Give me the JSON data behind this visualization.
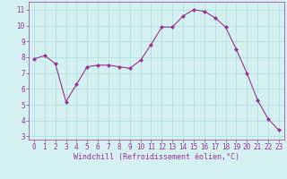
{
  "x": [
    0,
    1,
    2,
    3,
    4,
    5,
    6,
    7,
    8,
    9,
    10,
    11,
    12,
    13,
    14,
    15,
    16,
    17,
    18,
    19,
    20,
    21,
    22,
    23
  ],
  "y": [
    7.9,
    8.1,
    7.6,
    5.2,
    6.3,
    7.4,
    7.5,
    7.5,
    7.4,
    7.3,
    7.8,
    8.8,
    9.9,
    9.9,
    10.6,
    11.0,
    10.9,
    10.5,
    9.9,
    8.5,
    7.0,
    5.3,
    4.1,
    3.4
  ],
  "line_color": "#993399",
  "marker": "D",
  "marker_size": 2.0,
  "bg_color": "#d4f0f0",
  "grid_color": "#aadddd",
  "xlabel": "Windchill (Refroidissement éolien,°C)",
  "xlabel_color": "#993399",
  "tick_color": "#993399",
  "spine_color": "#993399",
  "xlim": [
    -0.5,
    23.5
  ],
  "ylim": [
    2.8,
    11.5
  ],
  "yticks": [
    3,
    4,
    5,
    6,
    7,
    8,
    9,
    10,
    11
  ],
  "xticks": [
    0,
    1,
    2,
    3,
    4,
    5,
    6,
    7,
    8,
    9,
    10,
    11,
    12,
    13,
    14,
    15,
    16,
    17,
    18,
    19,
    20,
    21,
    22,
    23
  ],
  "tick_fontsize": 5.5,
  "xlabel_fontsize": 6.0,
  "linewidth": 0.8
}
